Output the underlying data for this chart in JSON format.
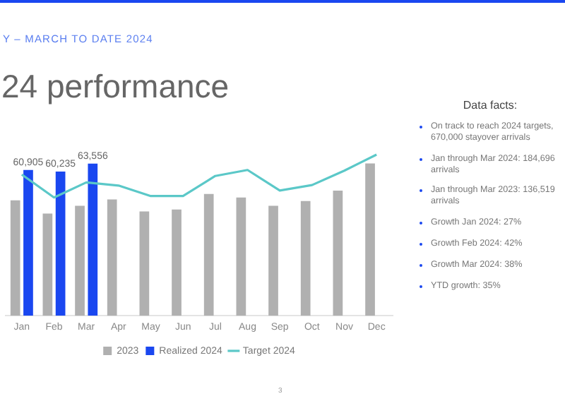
{
  "chart_data": {
    "type": "bar",
    "title": "24 performance",
    "subtitle": "Y – MARCH TO DATE 2024",
    "categories": [
      "Jan",
      "Feb",
      "Mar",
      "Apr",
      "May",
      "Jun",
      "Jul",
      "Aug",
      "Sep",
      "Oct",
      "Nov",
      "Dec"
    ],
    "series": [
      {
        "name": "2023",
        "color": "#b0b0b0",
        "values": [
          48200,
          42700,
          45900,
          48600,
          43600,
          44400,
          50900,
          49400,
          45900,
          47900,
          52300,
          63600
        ]
      },
      {
        "name": "Realized 2024",
        "color": "#1a47f0",
        "values": [
          60905,
          60235,
          63556,
          null,
          null,
          null,
          null,
          null,
          null,
          null,
          null,
          null
        ],
        "value_labels": [
          "60,905",
          "60,235",
          "63,556",
          null,
          null,
          null,
          null,
          null,
          null,
          null,
          null,
          null
        ]
      },
      {
        "name": "Target 2024",
        "type": "line",
        "color": "#5bc8c8",
        "values": [
          59000,
          49400,
          55700,
          54400,
          50000,
          50000,
          58400,
          60900,
          52300,
          54600,
          60600,
          67300
        ]
      }
    ],
    "tick_labels": "x",
    "grid": false,
    "legend": "bottom",
    "marker": "none",
    "annotations": [
      "Data facts:",
      "On track to reach 2024 targets, 670,000 stayover arrivals",
      "Jan through Mar 2024: 184,696 arrivals",
      "Jan through Mar 2023: 136,519 arrivals",
      "Growth Jan 2024: 27%",
      "Growth Feb 2024: 42%",
      "Growth Mar 2024: 38%",
      "YTD growth: 35%",
      "3"
    ]
  }
}
